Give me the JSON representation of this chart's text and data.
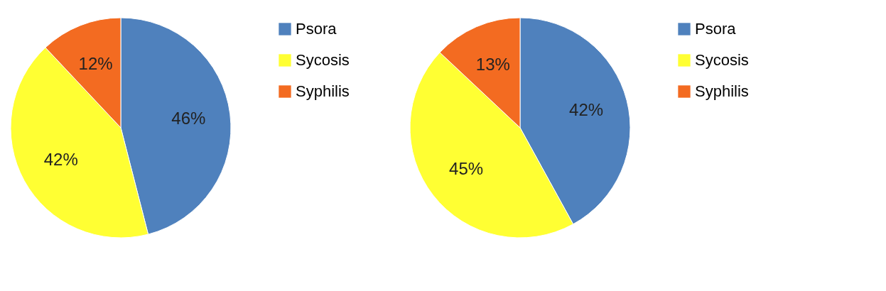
{
  "chart_data": [
    {
      "type": "pie",
      "categories": [
        "Psora",
        "Sycosis",
        "Syphilis"
      ],
      "values": [
        46,
        42,
        12
      ],
      "colors": [
        "#4f81bd",
        "#ffff33",
        "#f36b21"
      ],
      "value_labels": [
        "46%",
        "42%",
        "12%"
      ],
      "legend": "right"
    },
    {
      "type": "pie",
      "categories": [
        "Psora",
        "Sycosis",
        "Syphilis"
      ],
      "values": [
        42,
        45,
        13
      ],
      "colors": [
        "#4f81bd",
        "#ffff33",
        "#f36b21"
      ],
      "value_labels": [
        "42%",
        "45%",
        "13%"
      ],
      "legend": "right"
    }
  ]
}
